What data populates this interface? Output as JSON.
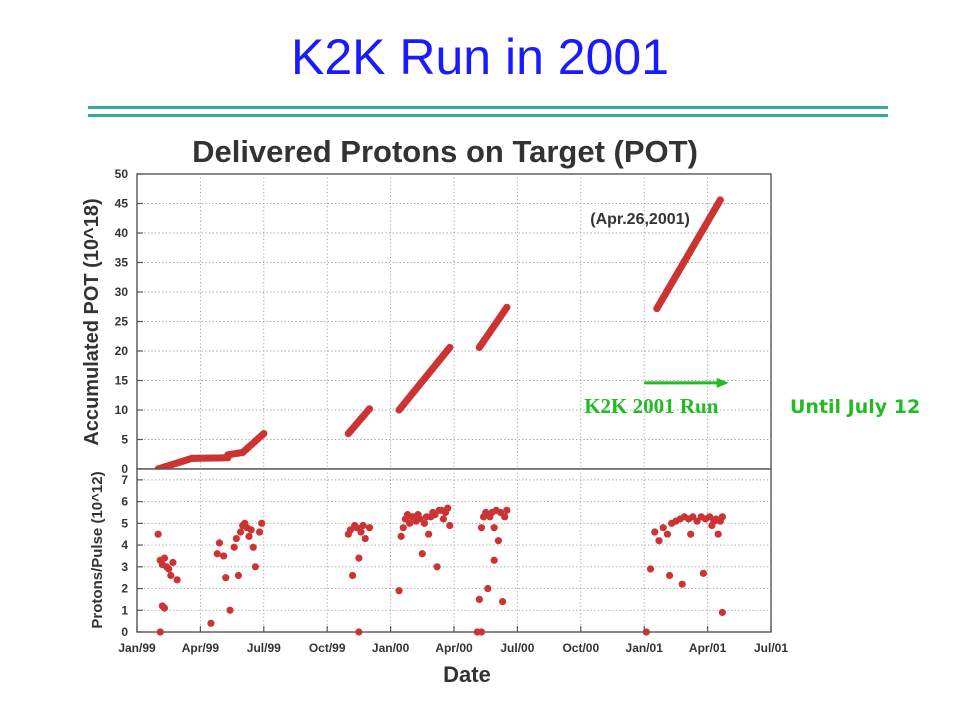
{
  "slide": {
    "title": "K2K Run in 2001",
    "side_note": "Until July 12"
  },
  "colors": {
    "title": "#1a1aff",
    "rule": "#33aaaa",
    "points": "#cc3333",
    "run_annotation": "#22bb22"
  },
  "chart_data": [
    {
      "type": "scatter",
      "title": "Delivered Protons on Target (POT)",
      "xlabel": "",
      "ylabel": "Accumulated POT (10^18)",
      "x_range": [
        "Jan/99",
        "Jul/01"
      ],
      "ylim": [
        0,
        50
      ],
      "y_ticks": [
        0,
        5,
        10,
        15,
        20,
        25,
        30,
        35,
        40,
        45,
        50
      ],
      "grid": true,
      "annotations": [
        {
          "text": "(Apr.26,2001)",
          "x": "Jan/01+1.8",
          "y": 41.5
        },
        {
          "text": "K2K 2001 Run",
          "x": "Jan/01",
          "y": 9.5,
          "arrow_from": "Jan/01",
          "arrow_to": "Apr/01+1",
          "arrow_y": 14.6
        }
      ],
      "series": [
        {
          "segments": [
            {
              "x_start": "Feb/99+0.0",
              "x_end": "Mar/99+0.6",
              "y_start": 0.0,
              "y_end": 1.8
            },
            {
              "x_start": "Mar/99+0.6",
              "x_end": "May/99+0.3",
              "y_start": 1.8,
              "y_end": 1.9
            },
            {
              "x_start": "May/99+0.3",
              "x_end": "Jun/99+0.0",
              "y_start": 2.4,
              "y_end": 2.8
            },
            {
              "x_start": "Jun/99+0.0",
              "x_end": "Jun/99+1.0",
              "y_start": 2.8,
              "y_end": 6.0
            },
            {
              "x_start": "Nov/99+0.0",
              "x_end": "Dec/99+0.0",
              "y_start": 6.0,
              "y_end": 10.2
            },
            {
              "x_start": "Jan/00+0.4",
              "x_end": "Mar/00+0.8",
              "y_start": 10.0,
              "y_end": 20.6
            },
            {
              "x_start": "May/00+0.2",
              "x_end": "Jun/00+0.5",
              "y_start": 20.6,
              "y_end": 27.4
            },
            {
              "x_start": "Jan/01+0.6",
              "x_end": "Apr/01+0.6",
              "y_start": 27.2,
              "y_end": 45.6
            }
          ]
        }
      ]
    },
    {
      "type": "scatter",
      "title": "",
      "xlabel": "Date",
      "ylabel": "Protons/Pulse (10^12)",
      "ylim": [
        0,
        7.5
      ],
      "y_ticks": [
        0,
        1,
        2,
        3,
        4,
        5,
        6,
        7
      ],
      "x_ticks": [
        "Jan/99",
        "Apr/99",
        "Jul/99",
        "Oct/99",
        "Jan/00",
        "Apr/00",
        "Jul/00",
        "Oct/00",
        "Jan/01",
        "Apr/01",
        "Jul/01"
      ],
      "grid": true,
      "series": [
        {
          "points": [
            [
              "Feb/99+0.0",
              4.5
            ],
            [
              "Feb/99+0.1",
              3.3
            ],
            [
              "Feb/99+0.2",
              3.1
            ],
            [
              "Feb/99+0.3",
              3.4
            ],
            [
              "Feb/99+0.4",
              3.0
            ],
            [
              "Feb/99+0.5",
              2.9
            ],
            [
              "Feb/99+0.6",
              2.6
            ],
            [
              "Feb/99+0.7",
              3.2
            ],
            [
              "Feb/99+0.2",
              1.2
            ],
            [
              "Feb/99+0.3",
              1.1
            ],
            [
              "Feb/99+0.1",
              0.0
            ],
            [
              "Feb/99+0.9",
              2.4
            ],
            [
              "Apr/99+0.5",
              0.4
            ],
            [
              "Apr/99+0.8",
              3.6
            ],
            [
              "Apr/99+0.9",
              4.1
            ],
            [
              "May/99+0.1",
              3.5
            ],
            [
              "May/99+0.2",
              2.5
            ],
            [
              "May/99+0.4",
              1.0
            ],
            [
              "May/99+0.6",
              3.9
            ],
            [
              "May/99+0.7",
              4.3
            ],
            [
              "May/99+0.8",
              2.6
            ],
            [
              "May/99+0.9",
              4.6
            ],
            [
              "Jun/99+0.0",
              4.9
            ],
            [
              "Jun/99+0.1",
              5.0
            ],
            [
              "Jun/99+0.2",
              4.8
            ],
            [
              "Jun/99+0.3",
              4.4
            ],
            [
              "Jun/99+0.4",
              4.7
            ],
            [
              "Jun/99+0.5",
              3.9
            ],
            [
              "Jun/99+0.6",
              3.0
            ],
            [
              "Jun/99+0.8",
              4.6
            ],
            [
              "Jun/99+0.9",
              5.0
            ],
            [
              "Nov/99+0.0",
              4.5
            ],
            [
              "Nov/99+0.1",
              4.7
            ],
            [
              "Nov/99+0.2",
              2.6
            ],
            [
              "Nov/99+0.3",
              4.9
            ],
            [
              "Nov/99+0.4",
              4.8
            ],
            [
              "Nov/99+0.5",
              3.4
            ],
            [
              "Nov/99+0.6",
              4.6
            ],
            [
              "Nov/99+0.7",
              4.9
            ],
            [
              "Nov/99+0.8",
              4.3
            ],
            [
              "Nov/99+0.5",
              0.0
            ],
            [
              "Dec/99+0.0",
              4.8
            ],
            [
              "Jan/00+0.4",
              1.9
            ],
            [
              "Jan/00+0.5",
              4.4
            ],
            [
              "Jan/00+0.6",
              4.8
            ],
            [
              "Jan/00+0.7",
              5.2
            ],
            [
              "Jan/00+0.8",
              5.4
            ],
            [
              "Jan/00+0.9",
              5.0
            ],
            [
              "Feb/00+0.0",
              5.3
            ],
            [
              "Feb/00+0.1",
              5.3
            ],
            [
              "Feb/00+0.2",
              5.1
            ],
            [
              "Feb/00+0.3",
              5.4
            ],
            [
              "Feb/00+0.4",
              5.2
            ],
            [
              "Feb/00+0.5",
              3.6
            ],
            [
              "Feb/00+0.6",
              5.0
            ],
            [
              "Feb/00+0.7",
              5.3
            ],
            [
              "Feb/00+0.8",
              4.5
            ],
            [
              "Feb/00+0.9",
              5.3
            ],
            [
              "Mar/00+0.0",
              5.5
            ],
            [
              "Mar/00+0.1",
              5.4
            ],
            [
              "Mar/00+0.2",
              3.0
            ],
            [
              "Mar/00+0.3",
              5.6
            ],
            [
              "Mar/00+0.4",
              5.6
            ],
            [
              "Mar/00+0.5",
              5.2
            ],
            [
              "Mar/00+0.6",
              5.5
            ],
            [
              "Mar/00+0.7",
              5.7
            ],
            [
              "Mar/00+0.8",
              4.9
            ],
            [
              "May/00+0.1",
              0.0
            ],
            [
              "May/00+0.2",
              1.5
            ],
            [
              "May/00+0.3",
              4.8
            ],
            [
              "May/00+0.4",
              5.3
            ],
            [
              "May/00+0.5",
              5.5
            ],
            [
              "May/00+0.6",
              2.0
            ],
            [
              "May/00+0.7",
              5.3
            ],
            [
              "May/00+0.8",
              5.5
            ],
            [
              "May/00+0.9",
              4.8
            ],
            [
              "Jun/00+0.0",
              5.6
            ],
            [
              "Jun/00+0.1",
              4.2
            ],
            [
              "Jun/00+0.2",
              5.5
            ],
            [
              "Jun/00+0.3",
              1.4
            ],
            [
              "Jun/00+0.4",
              5.3
            ],
            [
              "Jun/00+0.5",
              5.6
            ],
            [
              "May/00+0.3",
              0.0
            ],
            [
              "May/00+0.9",
              3.3
            ],
            [
              "Jan/01+0.1",
              0.0
            ],
            [
              "Jan/01+0.3",
              2.9
            ],
            [
              "Jan/01+0.5",
              4.6
            ],
            [
              "Jan/01+0.7",
              4.2
            ],
            [
              "Jan/01+0.9",
              4.8
            ],
            [
              "Feb/01+0.1",
              4.5
            ],
            [
              "Feb/01+0.2",
              2.6
            ],
            [
              "Feb/01+0.3",
              5.0
            ],
            [
              "Feb/01+0.5",
              5.1
            ],
            [
              "Feb/01+0.7",
              5.2
            ],
            [
              "Feb/01+0.8",
              2.2
            ],
            [
              "Feb/01+0.9",
              5.3
            ],
            [
              "Mar/01+0.1",
              5.2
            ],
            [
              "Mar/01+0.2",
              4.5
            ],
            [
              "Mar/01+0.3",
              5.3
            ],
            [
              "Mar/01+0.5",
              5.1
            ],
            [
              "Mar/01+0.7",
              5.3
            ],
            [
              "Mar/01+0.8",
              2.7
            ],
            [
              "Mar/01+0.9",
              5.2
            ],
            [
              "Apr/01+0.1",
              5.3
            ],
            [
              "Apr/01+0.2",
              4.9
            ],
            [
              "Apr/01+0.3",
              5.1
            ],
            [
              "Apr/01+0.4",
              5.2
            ],
            [
              "Apr/01+0.5",
              4.5
            ],
            [
              "Apr/01+0.6",
              5.1
            ],
            [
              "Apr/01+0.7",
              0.9
            ],
            [
              "Apr/01+0.7",
              5.3
            ]
          ]
        }
      ]
    }
  ]
}
